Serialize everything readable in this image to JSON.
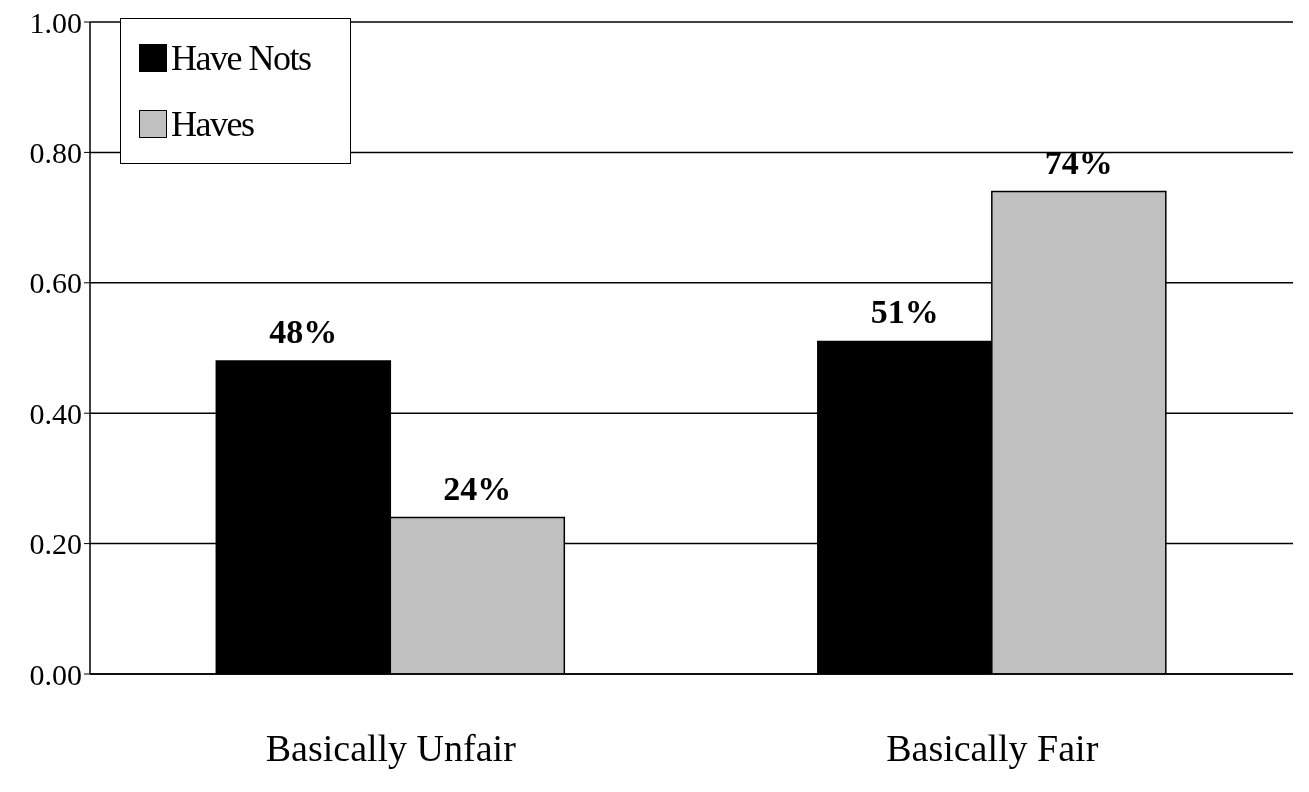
{
  "chart_data": {
    "type": "bar",
    "categories": [
      "Basically Unfair",
      "Basically Fair"
    ],
    "series": [
      {
        "name": "Have Nots",
        "color": "#000000",
        "values": [
          0.48,
          0.51
        ],
        "value_labels": [
          "48%",
          "51%"
        ]
      },
      {
        "name": "Haves",
        "color": "#c0c0c0",
        "values": [
          0.24,
          0.74
        ],
        "value_labels": [
          "24%",
          "74%"
        ]
      }
    ],
    "ylim": [
      0,
      1
    ],
    "yticks": [
      {
        "value": 0,
        "label": "0.00"
      },
      {
        "value": 0.2,
        "label": "0.20"
      },
      {
        "value": 0.4,
        "label": "0.40"
      },
      {
        "value": 0.6,
        "label": "0.60"
      },
      {
        "value": 0.8,
        "label": "0.80"
      },
      {
        "value": 1,
        "label": "1.00"
      }
    ],
    "grid": "y",
    "legend": "top left"
  }
}
